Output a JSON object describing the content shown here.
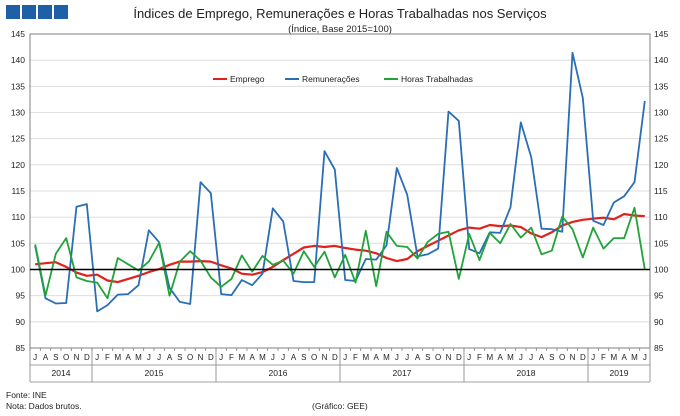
{
  "header": {
    "title": "Índices de Emprego, Remunerações e Horas Trabalhadas nos Serviços",
    "subtitle": "(Índice, Base 2015=100)"
  },
  "footer": {
    "source": "Fonte: INE",
    "note": "Nota: Dados brutos.",
    "graph_credit": "(Gráfico: GEE)"
  },
  "colors": {
    "brand": "#1f5fa8",
    "emprego": "#e0221b",
    "remuneracoes": "#2a6eb4",
    "horas": "#21a33a",
    "baseline": "#000000"
  },
  "chart_data": {
    "type": "line",
    "ylim": [
      85,
      145
    ],
    "yticks": [
      85,
      90,
      95,
      100,
      105,
      110,
      115,
      120,
      125,
      130,
      135,
      140,
      145
    ],
    "reference_line": 100,
    "legend_placement": "top-left",
    "month_labels": [
      "J",
      "A",
      "S",
      "O",
      "N",
      "D",
      "J",
      "F",
      "M",
      "A",
      "M",
      "J",
      "J",
      "A",
      "S",
      "O",
      "N",
      "D",
      "J",
      "F",
      "M",
      "A",
      "M",
      "J",
      "J",
      "A",
      "S",
      "O",
      "N",
      "D",
      "J",
      "F",
      "M",
      "A",
      "M",
      "J",
      "J",
      "A",
      "S",
      "O",
      "N",
      "D",
      "J",
      "F",
      "M",
      "A",
      "M",
      "J",
      "J",
      "A",
      "S",
      "O",
      "N",
      "D",
      "J",
      "F",
      "M",
      "A",
      "M",
      "J"
    ],
    "x_start": "2014-07",
    "x_end": "2019-06",
    "years": [
      {
        "label": "2014",
        "months": 6
      },
      {
        "label": "2015",
        "months": 12
      },
      {
        "label": "2016",
        "months": 12
      },
      {
        "label": "2017",
        "months": 12
      },
      {
        "label": "2018",
        "months": 12
      },
      {
        "label": "2019",
        "months": 6
      }
    ],
    "series": [
      {
        "name": "Emprego",
        "color": "#e0221b",
        "values": [
          101.0,
          101.2,
          101.4,
          100.5,
          99.4,
          98.8,
          99.0,
          97.9,
          97.6,
          98.2,
          98.8,
          99.5,
          100.1,
          100.9,
          101.5,
          101.5,
          101.6,
          101.5,
          100.8,
          100.2,
          99.2,
          99.0,
          99.5,
          100.5,
          101.8,
          103.0,
          104.2,
          104.5,
          104.3,
          104.5,
          104.1,
          103.8,
          103.6,
          103.1,
          102.2,
          101.6,
          102.0,
          103.5,
          104.5,
          105.5,
          106.5,
          107.5,
          108.0,
          107.8,
          108.5,
          108.3,
          108.4,
          108.1,
          106.9,
          106.2,
          107.1,
          108.4,
          109.1,
          109.5,
          109.7,
          109.9,
          109.6,
          110.6,
          110.3,
          110.2
        ]
      },
      {
        "name": "Remunerações",
        "color": "#2a6eb4",
        "values": [
          104.5,
          94.5,
          93.5,
          93.6,
          112.0,
          112.5,
          92.0,
          93.2,
          95.2,
          95.3,
          97.0,
          107.5,
          105.2,
          96.5,
          93.8,
          93.4,
          116.7,
          114.6,
          95.3,
          95.1,
          98.0,
          97.0,
          99.2,
          111.7,
          109.2,
          97.8,
          97.6,
          97.6,
          122.6,
          119.1,
          98.0,
          97.8,
          102.0,
          101.9,
          104.6,
          119.4,
          114.3,
          102.5,
          102.9,
          104.0,
          130.2,
          128.4,
          103.9,
          103.1,
          107.1,
          107.0,
          111.9,
          128.1,
          121.5,
          107.8,
          107.7,
          107.2,
          141.4,
          132.8,
          109.3,
          108.5,
          112.8,
          114.0,
          116.7,
          132.2
        ]
      },
      {
        "name": "Horas Trabalhadas",
        "color": "#21a33a",
        "values": [
          104.8,
          95.0,
          103.0,
          106.0,
          98.5,
          97.8,
          97.5,
          94.5,
          102.2,
          101.0,
          99.8,
          101.5,
          105.1,
          95.0,
          101.5,
          103.5,
          101.7,
          98.5,
          96.7,
          98.2,
          102.7,
          99.6,
          102.6,
          100.9,
          101.7,
          99.2,
          103.5,
          100.5,
          103.4,
          98.5,
          102.8,
          97.5,
          107.4,
          96.8,
          107.2,
          104.5,
          104.3,
          102.1,
          105.3,
          106.8,
          107.2,
          98.2,
          106.8,
          101.8,
          107.0,
          105.0,
          108.7,
          106.1,
          108.0,
          102.9,
          103.6,
          110.1,
          107.7,
          102.3,
          108.0,
          104.0,
          106.0,
          106.0,
          111.8,
          100.0
        ]
      }
    ]
  }
}
